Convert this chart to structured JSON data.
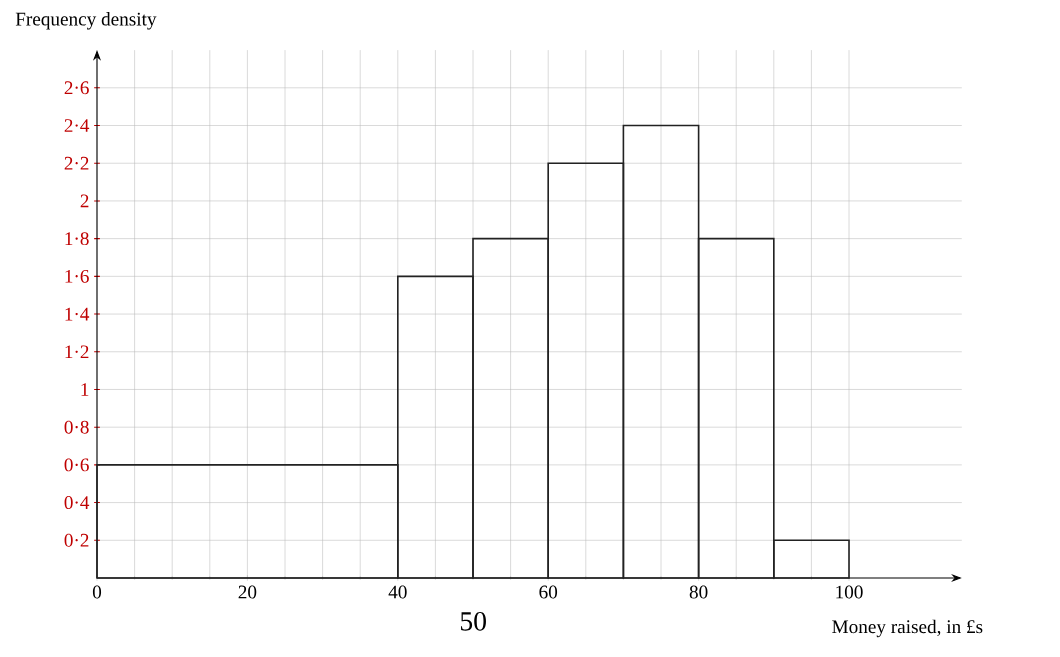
{
  "chart_data": {
    "type": "histogram",
    "xlabel": "Money raised, in £s",
    "ylabel": "Frequency density",
    "bins": [
      0,
      40,
      50,
      60,
      70,
      80,
      90,
      100
    ],
    "values": [
      0.6,
      1.6,
      1.8,
      2.2,
      2.4,
      1.8,
      0.2
    ],
    "color": "#222222",
    "xlim": [
      0,
      115
    ],
    "ylim": [
      0,
      2.8
    ],
    "xticks": [
      0,
      20,
      40,
      60,
      80,
      100
    ],
    "yticks": [
      {
        "value": 0.2,
        "label": "0·2"
      },
      {
        "value": 0.4,
        "label": "0·4"
      },
      {
        "value": 0.6,
        "label": "0·6"
      },
      {
        "value": 0.8,
        "label": "0·8"
      },
      {
        "value": 1,
        "label": "1"
      },
      {
        "value": 1.2,
        "label": "1·2"
      },
      {
        "value": 1.4,
        "label": "1·4"
      },
      {
        "value": 1.6,
        "label": "1·6"
      },
      {
        "value": 1.8,
        "label": "1·8"
      },
      {
        "value": 2,
        "label": "2"
      },
      {
        "value": 2.2,
        "label": "2·2"
      },
      {
        "value": 2.4,
        "label": "2·4"
      },
      {
        "value": 2.6,
        "label": "2·6"
      }
    ],
    "grid": true,
    "annotations": [
      "50"
    ]
  }
}
